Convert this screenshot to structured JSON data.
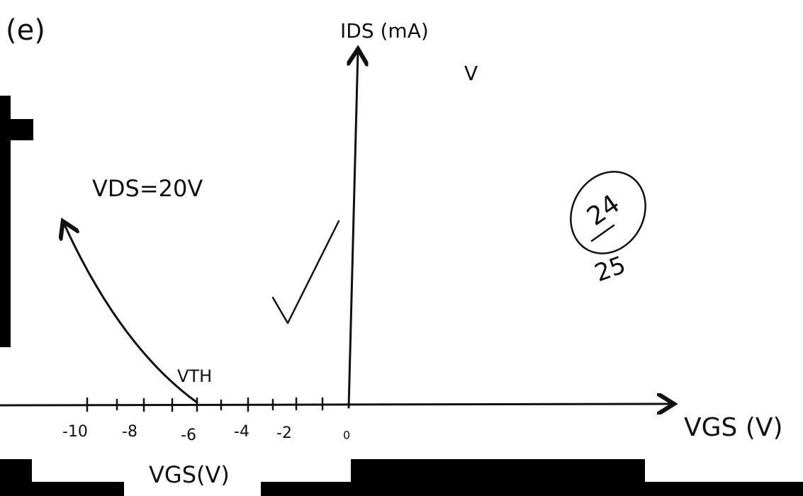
{
  "part_label": "(e)",
  "y_axis_label": "IDS (mA)",
  "stray_mark": "V",
  "condition": "VDS=20V",
  "score": {
    "earned": "24",
    "total": "25"
  },
  "threshold_label": "VTH",
  "x_axis_label": "VGS (V)",
  "x_tick_labels": [
    "-10",
    "-8",
    "-6",
    "-4",
    "-2",
    "0"
  ],
  "bottom_label": "VGS(V)"
}
